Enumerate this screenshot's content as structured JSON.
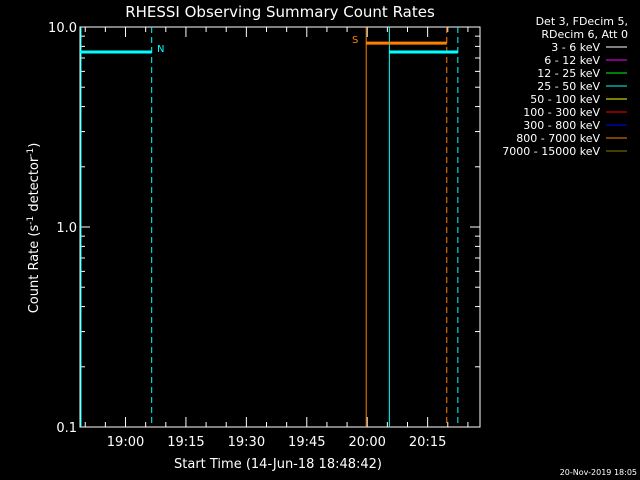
{
  "chart_data": {
    "type": "line",
    "title": "RHESSI Observing Summary Count Rates",
    "xlabel": "Start Time (14-Jun-18 18:48:42)",
    "ylabel_main": "Count Rate (s",
    "ylabel_sup1": "-1",
    "ylabel_mid": " detector",
    "ylabel_sup2": "-1",
    "ylabel_end": ")",
    "y_scale": "log",
    "ylim": [
      0.1,
      10.0
    ],
    "xlim": [
      "18:48:42",
      "20:28:00"
    ],
    "x_ticks": [
      {
        "t": "19:00",
        "label": "19:00"
      },
      {
        "t": "19:15",
        "label": "19:15"
      },
      {
        "t": "19:30",
        "label": "19:30"
      },
      {
        "t": "19:45",
        "label": "19:45"
      },
      {
        "t": "20:00",
        "label": "20:00"
      },
      {
        "t": "20:15",
        "label": "20:15"
      }
    ],
    "y_ticks": [
      {
        "v": 10.0,
        "label": "10.0"
      },
      {
        "v": 1.0,
        "label": "1.0"
      },
      {
        "v": 0.1,
        "label": "0.1"
      }
    ],
    "legend": {
      "position": "top-right",
      "header": [
        "Det 3, FDecim 5,",
        "RDecim 6, Att 0"
      ],
      "entries": [
        {
          "label": "3 - 6 keV",
          "color": "#ffffff"
        },
        {
          "label": "6 - 12 keV",
          "color": "#ff00ff"
        },
        {
          "label": "12 - 25 keV",
          "color": "#00ff00"
        },
        {
          "label": "25 - 50 keV",
          "color": "#00ffff"
        },
        {
          "label": "50 - 100 keV",
          "color": "#ffff00"
        },
        {
          "label": "100 - 300 keV",
          "color": "#ff0000"
        },
        {
          "label": "300 - 800 keV",
          "color": "#0000ff"
        },
        {
          "label": "800 - 7000 keV",
          "color": "#ff8000"
        },
        {
          "label": "7000 - 15000 keV",
          "color": "#808000"
        }
      ]
    },
    "series": [
      {
        "color": "#00ffff",
        "segments": [
          {
            "x": [
              "18:48:42",
              "19:06:30"
            ],
            "y": 7.5
          },
          {
            "x": [
              "20:05:30",
              "20:22:30"
            ],
            "y": 7.5
          }
        ]
      },
      {
        "color": "#ff8000",
        "segments": [
          {
            "x": [
              "19:59:45",
              "20:19:45"
            ],
            "y": 8.3
          }
        ]
      }
    ],
    "markers": [
      {
        "t": "18:48:42",
        "style": "solid",
        "color": "#00ffff"
      },
      {
        "t": "19:06:30",
        "style": "dashed",
        "color": "#00ffff",
        "label": "N"
      },
      {
        "t": "20:05:30",
        "style": "solid",
        "color": "#00ffff"
      },
      {
        "t": "20:22:30",
        "style": "dashed",
        "color": "#00ffff"
      },
      {
        "t": "19:59:45",
        "style": "solid",
        "color": "#ff8000",
        "label": "S"
      },
      {
        "t": "20:19:45",
        "style": "dashed",
        "color": "#ff8000"
      }
    ],
    "timestamp": "20-Nov-2019 18:05"
  }
}
